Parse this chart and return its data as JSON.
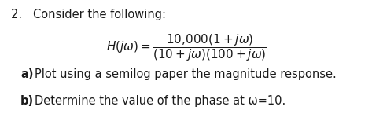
{
  "title": "2.   Consider the following:",
  "equation": "$H(j\\omega) = \\dfrac{10{,}000(1 + j\\omega)}{(10 + j\\omega)(100 + j\\omega)}$",
  "part_a_label": "a)",
  "part_a_text": "  Plot using a semilog paper the magnitude response.",
  "part_b_label": "b)",
  "part_b_text": "  Determine the value of the phase at ω=10.",
  "bg_color": "#ffffff",
  "text_color": "#1a1a1a",
  "font_size_title": 10.5,
  "font_size_eq": 11.0,
  "font_size_body": 10.5
}
